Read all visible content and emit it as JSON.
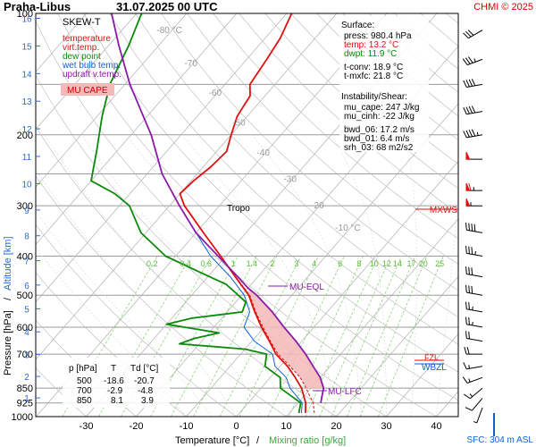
{
  "header": {
    "station": "Praha-Libus",
    "datetime": "31.07.2025 00 UTC",
    "copyright": "CHMI © 2025"
  },
  "legend": {
    "title": "SKEW-T",
    "entries": [
      {
        "label": "temperature",
        "color": "#e01010"
      },
      {
        "label": "virt.temp.",
        "color": "#e01010"
      },
      {
        "label": "dew point",
        "color": "#0a8a0a"
      },
      {
        "label": "wet bulb temp.",
        "color": "#1060d0"
      },
      {
        "label": "updraft v.temp.",
        "color": "#8a1aa8"
      }
    ],
    "mu_cape_label": "MU CAPE",
    "mu_cape_fill": "#f4b8b8"
  },
  "surface": {
    "title": "Surface:",
    "press": "press: 980.4 hPa",
    "temp": "temp: 13.2 °C",
    "dwpt": "dwpt: 11.9 °C",
    "t_conv": "t-conv: 18.9 °C",
    "t_mxfc": "t-mxfc: 21.8 °C"
  },
  "instability": {
    "title": "Instability/Shear:",
    "mu_cape": "mu_cape: 247 J/kg",
    "mu_cinh": "mu_cinh: -22 J/kg",
    "bwd_06": "bwd_06: 17.2 m/s",
    "bwd_01": "bwd_01: 6.4 m/s",
    "srh_03": "srh_03: 68 m2/s2"
  },
  "table": {
    "headers": [
      "p [hPa]",
      "T",
      "Td [°C]"
    ],
    "rows": [
      [
        "500",
        "-18.6",
        "-20.7"
      ],
      [
        "700",
        "-2.9",
        "-4.8"
      ],
      [
        "850",
        "8.1",
        "3.9"
      ]
    ]
  },
  "annotations": {
    "tropo": "Tropo",
    "mxws": "MXWS",
    "mu_eql": "MU-EQL",
    "mu_lfc": "MU-LFC",
    "wbzl": "WBZL",
    "fzl": "FZL",
    "sfc": "SFC: 304 m ASL"
  },
  "axes": {
    "xlabel_temp": "Temperature [°C]",
    "xlabel_sep": "/",
    "xlabel_mix": "Mixing ratio [g/kg]",
    "ylabel_p": "Pressure [hPa]",
    "ylabel_sep": "/",
    "ylabel_alt": "Altitude [km]",
    "temp_ticks": [
      "-30",
      "-20",
      "-10",
      "0",
      "10",
      "20",
      "30",
      "40"
    ],
    "pressure_ticks": [
      "100",
      "200",
      "300",
      "400",
      "500",
      "600",
      "700",
      "850",
      "925",
      "1000"
    ],
    "altitude_ticks": [
      "1",
      "2",
      "3",
      "4",
      "5",
      "6",
      "7",
      "8",
      "9",
      "10",
      "11",
      "12",
      "13",
      "14",
      "15",
      "16"
    ],
    "isotherm_labels": [
      "-80 °C",
      "-70",
      "-60",
      "-50",
      "-40",
      "-30",
      "-20",
      "-10 °C"
    ],
    "mixing_labels": [
      "0.2",
      "0.4",
      "0.6",
      "1",
      "1.4",
      "2",
      "3",
      "4",
      "6",
      "8",
      "10",
      "12",
      "14",
      "17",
      "20",
      "25"
    ]
  },
  "chart_data": {
    "type": "line",
    "title": "Praha-Libus 31.07.2025 00 UTC",
    "xlabel": "Temperature [°C] / Mixing ratio [g/kg]",
    "ylabel": "Pressure [hPa] / Altitude [km]",
    "xlim": [
      -35,
      43
    ],
    "ylim": [
      1000,
      100
    ],
    "y_scale": "log",
    "grid": true,
    "series": [
      {
        "name": "temperature",
        "color": "#e01010",
        "points": [
          [
            980,
            13.2
          ],
          [
            925,
            11.5
          ],
          [
            850,
            8.1
          ],
          [
            800,
            5.0
          ],
          [
            750,
            1.5
          ],
          [
            700,
            -2.9
          ],
          [
            650,
            -6.5
          ],
          [
            600,
            -10.5
          ],
          [
            550,
            -14.5
          ],
          [
            500,
            -18.6
          ],
          [
            450,
            -24.5
          ],
          [
            400,
            -31
          ],
          [
            350,
            -38.5
          ],
          [
            300,
            -47
          ],
          [
            280,
            -50
          ],
          [
            260,
            -49.5
          ],
          [
            240,
            -48.5
          ],
          [
            220,
            -48
          ],
          [
            200,
            -50
          ],
          [
            180,
            -52
          ],
          [
            160,
            -53
          ],
          [
            150,
            -55
          ],
          [
            130,
            -56
          ],
          [
            115,
            -57
          ],
          [
            100,
            -59
          ]
        ]
      },
      {
        "name": "virt.temp.",
        "color": "#e01010",
        "points": [
          [
            980,
            15.0
          ],
          [
            925,
            13.0
          ],
          [
            850,
            9.0
          ],
          [
            800,
            6.0
          ],
          [
            750,
            2.0
          ],
          [
            700,
            -2.5
          ],
          [
            650,
            -6.3
          ],
          [
            600,
            -10.2
          ],
          [
            550,
            -14.3
          ],
          [
            500,
            -18.4
          ],
          [
            450,
            -24.4
          ],
          [
            400,
            -31
          ],
          [
            350,
            -38.5
          ],
          [
            300,
            -47
          ]
        ]
      },
      {
        "name": "dew point",
        "color": "#0a8a0a",
        "points": [
          [
            980,
            11.9
          ],
          [
            925,
            10.5
          ],
          [
            850,
            3.9
          ],
          [
            800,
            2.0
          ],
          [
            750,
            -3.0
          ],
          [
            700,
            -4.8
          ],
          [
            680,
            -10
          ],
          [
            660,
            -24
          ],
          [
            640,
            -22
          ],
          [
            620,
            -18
          ],
          [
            600,
            -26
          ],
          [
            590,
            -30
          ],
          [
            570,
            -26
          ],
          [
            550,
            -17
          ],
          [
            520,
            -18
          ],
          [
            500,
            -20.7
          ],
          [
            470,
            -25
          ],
          [
            440,
            -32
          ],
          [
            400,
            -42
          ],
          [
            350,
            -51
          ],
          [
            300,
            -58
          ],
          [
            280,
            -63
          ],
          [
            260,
            -70
          ],
          [
            220,
            -74
          ],
          [
            180,
            -79
          ],
          [
            150,
            -83
          ],
          [
            120,
            -86
          ],
          [
            100,
            -89
          ]
        ]
      },
      {
        "name": "wet bulb temp.",
        "color": "#1060d0",
        "points": [
          [
            980,
            12.4
          ],
          [
            925,
            10.8
          ],
          [
            850,
            5.8
          ],
          [
            800,
            3.2
          ],
          [
            750,
            -1.0
          ],
          [
            700,
            -3.6
          ],
          [
            650,
            -9.5
          ],
          [
            600,
            -14
          ],
          [
            550,
            -15.5
          ],
          [
            500,
            -19.5
          ],
          [
            450,
            -25.5
          ],
          [
            400,
            -33
          ],
          [
            350,
            -40
          ],
          [
            300,
            -48
          ]
        ]
      },
      {
        "name": "updraft v.temp.",
        "color": "#8a1aa8",
        "points": [
          [
            925,
            14.5
          ],
          [
            850,
            12.5
          ],
          [
            800,
            10.0
          ],
          [
            750,
            6.6
          ],
          [
            700,
            3.0
          ],
          [
            650,
            -1.2
          ],
          [
            600,
            -6.0
          ],
          [
            550,
            -11.0
          ],
          [
            500,
            -17.0
          ],
          [
            480,
            -20.0
          ],
          [
            450,
            -24.0
          ],
          [
            400,
            -31.5
          ],
          [
            350,
            -40
          ],
          [
            300,
            -48
          ],
          [
            250,
            -57
          ],
          [
            200,
            -66
          ],
          [
            150,
            -79
          ],
          [
            120,
            -88
          ],
          [
            100,
            -95
          ]
        ]
      }
    ],
    "wind_barbs": [
      {
        "p": 110,
        "dir": 240,
        "kt": 30
      },
      {
        "p": 130,
        "dir": 250,
        "kt": 35
      },
      {
        "p": 150,
        "dir": 260,
        "kt": 40
      },
      {
        "p": 175,
        "dir": 260,
        "kt": 40
      },
      {
        "p": 200,
        "dir": 260,
        "kt": 45
      },
      {
        "p": 230,
        "dir": 270,
        "kt": 50
      },
      {
        "p": 275,
        "dir": 270,
        "kt": 65
      },
      {
        "p": 300,
        "dir": 270,
        "kt": 55
      },
      {
        "p": 350,
        "dir": 280,
        "kt": 40
      },
      {
        "p": 400,
        "dir": 280,
        "kt": 35
      },
      {
        "p": 450,
        "dir": 280,
        "kt": 30
      },
      {
        "p": 500,
        "dir": 280,
        "kt": 30
      },
      {
        "p": 550,
        "dir": 280,
        "kt": 25
      },
      {
        "p": 600,
        "dir": 280,
        "kt": 25
      },
      {
        "p": 650,
        "dir": 280,
        "kt": 20
      },
      {
        "p": 700,
        "dir": 270,
        "kt": 20
      },
      {
        "p": 750,
        "dir": 260,
        "kt": 15
      },
      {
        "p": 800,
        "dir": 250,
        "kt": 15
      },
      {
        "p": 850,
        "dir": 230,
        "kt": 15
      },
      {
        "p": 900,
        "dir": 220,
        "kt": 10
      },
      {
        "p": 950,
        "dir": 200,
        "kt": 5
      }
    ]
  }
}
